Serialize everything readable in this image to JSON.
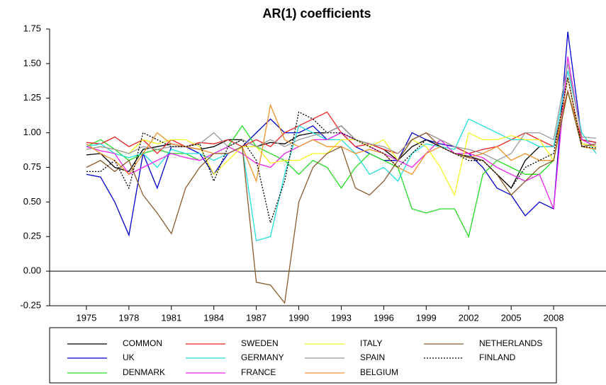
{
  "chart_data": {
    "type": "line",
    "title": "AR(1) coefficients",
    "x": [
      1975,
      1976,
      1977,
      1978,
      1979,
      1980,
      1981,
      1982,
      1983,
      1984,
      1985,
      1986,
      1987,
      1988,
      1989,
      1990,
      1991,
      1992,
      1993,
      1994,
      1995,
      1996,
      1997,
      1998,
      1999,
      2000,
      2001,
      2002,
      2003,
      2004,
      2005,
      2006,
      2007,
      2008,
      2009,
      2010,
      2011
    ],
    "xlim": [
      1972.4,
      2011.7
    ],
    "xticks": [
      1975,
      1978,
      1981,
      1984,
      1987,
      1990,
      1993,
      1996,
      1999,
      2002,
      2005,
      2008
    ],
    "ylim": [
      -0.25,
      1.75
    ],
    "yticks": [
      -0.25,
      {
        "value": 0,
        "label": "0.00"
      },
      0.25,
      {
        "value": 0.5,
        "label": "0.50"
      },
      0.75,
      {
        "value": 1,
        "label": "1.00"
      },
      1.25,
      {
        "value": 1.5,
        "label": "1.50"
      },
      1.75
    ],
    "zero_line": true,
    "series": [
      {
        "name": "COMMON",
        "color": "#000000",
        "values": [
          0.84,
          0.85,
          0.75,
          0.72,
          0.88,
          0.9,
          0.92,
          0.9,
          0.88,
          0.9,
          0.95,
          0.95,
          0.9,
          0.93,
          0.92,
          0.98,
          1.0,
          1.0,
          1.05,
          0.95,
          0.92,
          0.88,
          0.8,
          0.9,
          0.95,
          0.9,
          0.85,
          0.83,
          0.8,
          0.7,
          0.6,
          0.8,
          0.9,
          0.9,
          1.3,
          0.92,
          0.9
        ]
      },
      {
        "name": "UK",
        "color": "#0000cc",
        "values": [
          0.7,
          0.68,
          0.5,
          0.26,
          0.85,
          0.6,
          0.9,
          0.9,
          0.85,
          0.7,
          0.85,
          0.9,
          1.0,
          1.1,
          1.0,
          1.0,
          1.05,
          0.95,
          1.0,
          0.9,
          0.85,
          0.8,
          0.8,
          1.0,
          0.95,
          0.92,
          0.9,
          0.85,
          0.75,
          0.6,
          0.55,
          0.4,
          0.5,
          0.45,
          1.73,
          0.95,
          0.93
        ]
      },
      {
        "name": "DENMARK",
        "color": "#22dd22",
        "values": [
          0.9,
          0.95,
          0.88,
          0.8,
          0.85,
          0.88,
          0.85,
          0.85,
          0.8,
          0.85,
          0.9,
          1.05,
          0.9,
          0.85,
          0.8,
          0.7,
          0.8,
          0.75,
          0.6,
          0.75,
          0.85,
          0.8,
          0.75,
          0.45,
          0.42,
          0.45,
          0.45,
          0.25,
          0.7,
          0.8,
          0.75,
          0.7,
          0.7,
          0.8,
          1.3,
          0.9,
          0.88
        ]
      },
      {
        "name": "SWEDEN",
        "color": "#ee2222",
        "values": [
          0.93,
          0.92,
          0.97,
          0.9,
          0.95,
          0.85,
          0.95,
          0.9,
          0.93,
          0.92,
          0.95,
          0.9,
          0.95,
          0.9,
          1.0,
          1.05,
          1.1,
          1.15,
          1.0,
          0.9,
          0.92,
          0.88,
          0.85,
          0.95,
          1.0,
          0.95,
          0.9,
          0.85,
          0.88,
          0.9,
          0.95,
          1.0,
          0.95,
          0.9,
          1.3,
          0.95,
          0.93
        ]
      },
      {
        "name": "GERMANY",
        "color": "#22dddd",
        "values": [
          0.9,
          0.92,
          0.85,
          0.82,
          0.85,
          0.75,
          0.88,
          0.85,
          0.85,
          0.8,
          0.85,
          0.9,
          0.22,
          0.25,
          0.7,
          1.05,
          1.0,
          0.95,
          0.95,
          0.85,
          0.7,
          0.75,
          0.65,
          0.85,
          0.92,
          0.9,
          0.88,
          1.1,
          1.05,
          1.0,
          0.95,
          0.95,
          0.9,
          0.9,
          1.45,
          1.0,
          0.85
        ]
      },
      {
        "name": "FRANCE",
        "color": "#ee22ee",
        "values": [
          0.9,
          0.87,
          0.85,
          0.7,
          0.75,
          0.8,
          0.85,
          0.82,
          0.8,
          0.85,
          0.9,
          0.85,
          0.78,
          0.75,
          0.85,
          0.9,
          0.95,
          0.95,
          1.0,
          0.95,
          0.9,
          0.85,
          0.8,
          0.75,
          0.85,
          0.95,
          0.85,
          0.85,
          0.82,
          0.75,
          0.7,
          0.65,
          0.7,
          0.45,
          1.55,
          0.95,
          0.9
        ]
      },
      {
        "name": "ITALY",
        "color": "#f5f522",
        "values": [
          0.88,
          0.9,
          0.88,
          0.85,
          0.95,
          0.92,
          0.95,
          0.95,
          0.9,
          0.7,
          0.8,
          0.9,
          0.9,
          0.78,
          0.8,
          0.8,
          0.85,
          0.85,
          0.95,
          0.95,
          0.9,
          0.95,
          0.8,
          0.95,
          0.9,
          0.75,
          0.55,
          1.0,
          0.95,
          0.95,
          0.98,
          0.95,
          0.95,
          0.8,
          1.3,
          0.92,
          0.9
        ]
      },
      {
        "name": "SPAIN",
        "color": "#999999",
        "values": [
          0.88,
          0.9,
          0.88,
          0.85,
          0.9,
          0.88,
          0.9,
          0.9,
          0.92,
          1.0,
          0.9,
          0.95,
          0.9,
          0.95,
          0.9,
          0.95,
          0.98,
          1.0,
          1.05,
          0.95,
          0.92,
          0.9,
          0.85,
          0.95,
          1.0,
          0.95,
          0.9,
          0.88,
          0.85,
          0.8,
          0.85,
          1.0,
          1.0,
          0.95,
          1.5,
          0.97,
          0.96
        ]
      },
      {
        "name": "BELGIUM",
        "color": "#f0922a",
        "values": [
          0.92,
          0.85,
          0.8,
          0.7,
          0.85,
          1.0,
          0.92,
          0.9,
          0.88,
          0.85,
          0.85,
          0.9,
          0.65,
          1.2,
          0.95,
          0.9,
          0.95,
          0.9,
          0.9,
          0.85,
          0.88,
          0.85,
          0.75,
          0.7,
          0.85,
          0.9,
          0.85,
          0.82,
          0.85,
          0.9,
          0.8,
          0.85,
          0.8,
          0.8,
          1.4,
          0.9,
          0.88
        ]
      },
      {
        "name": "NETHERLANDS",
        "color": "#8b5a2b",
        "values": [
          0.75,
          0.8,
          0.72,
          0.8,
          0.55,
          0.42,
          0.27,
          0.6,
          0.75,
          0.85,
          0.85,
          0.9,
          -0.08,
          -0.1,
          -0.23,
          0.5,
          0.75,
          0.85,
          0.9,
          0.6,
          0.55,
          0.65,
          0.8,
          0.95,
          1.0,
          0.9,
          0.85,
          0.82,
          0.8,
          0.7,
          0.55,
          0.65,
          0.75,
          0.8,
          1.3,
          0.9,
          0.92
        ]
      },
      {
        "name": "FINLAND",
        "color": "#000000",
        "linestyle": "dotted",
        "values": [
          0.72,
          0.72,
          0.8,
          0.6,
          1.0,
          0.95,
          0.9,
          0.9,
          0.92,
          0.65,
          0.9,
          0.95,
          0.8,
          0.35,
          0.65,
          1.15,
          1.1,
          1.0,
          1.0,
          0.95,
          0.9,
          0.85,
          0.75,
          0.85,
          0.95,
          0.9,
          0.85,
          0.8,
          0.8,
          0.7,
          0.6,
          0.75,
          0.8,
          0.85,
          1.4,
          0.9,
          0.89
        ]
      }
    ]
  }
}
